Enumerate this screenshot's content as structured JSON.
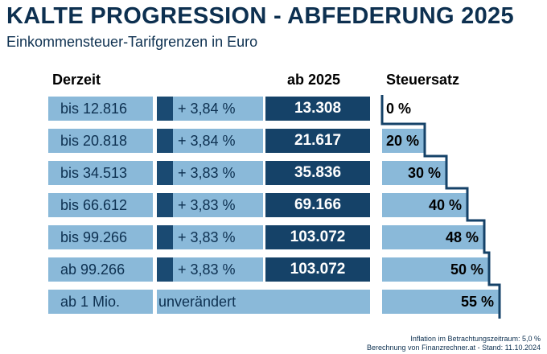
{
  "title": "KALTE PROGRESSION - ABFEDERUNG 2025",
  "subtitle": "Einkommensteuer-Tarifgrenzen in Euro",
  "headers": {
    "current": "Derzeit",
    "new": "ab 2025",
    "rate": "Steuersatz"
  },
  "rows": [
    {
      "current": "bis 12.816",
      "increase": "+ 3,84 %",
      "new": "13.308",
      "rate": "0 %"
    },
    {
      "current": "bis 20.818",
      "increase": "+ 3,84 %",
      "new": "21.617",
      "rate": "20 %"
    },
    {
      "current": "bis 34.513",
      "increase": "+ 3,83 %",
      "new": "35.836",
      "rate": "30 %"
    },
    {
      "current": "bis 66.612",
      "increase": "+ 3,83 %",
      "new": "69.166",
      "rate": "40 %"
    },
    {
      "current": "bis 99.266",
      "increase": "+ 3,83 %",
      "new": "103.072",
      "rate": "48 %"
    },
    {
      "current": "ab 99.266",
      "increase": "+ 3,83 %",
      "new": "103.072",
      "rate": "50 %"
    },
    {
      "current": "ab 1 Mio.",
      "unchanged": "unverändert",
      "rate": "55 %"
    }
  ],
  "footnotes": {
    "line1": "Inflation im Betrachtungszeitraum: 5,0 %",
    "line2": "Berechnung von Finanzrechner.at - Stand: 11.10.2024"
  },
  "colors": {
    "light_blue": "#8ab9d9",
    "dark_blue": "#154268",
    "accent": "#1a4a72",
    "text": "#0d3050"
  },
  "chart_data": {
    "type": "table",
    "title": "KALTE PROGRESSION - ABFEDERUNG 2025",
    "subtitle": "Einkommensteuer-Tarifgrenzen in Euro",
    "columns": [
      "Derzeit",
      "",
      "ab 2025",
      "Steuersatz"
    ],
    "tax_rates_percent": [
      0,
      20,
      30,
      40,
      48,
      50,
      55
    ],
    "current_limits": [
      12816,
      20818,
      34513,
      66612,
      99266,
      99266,
      1000000
    ],
    "new_limits": [
      13308,
      21617,
      35836,
      69166,
      103072,
      103072,
      null
    ],
    "increase_percent": [
      3.84,
      3.84,
      3.83,
      3.83,
      3.83,
      3.83,
      null
    ]
  }
}
